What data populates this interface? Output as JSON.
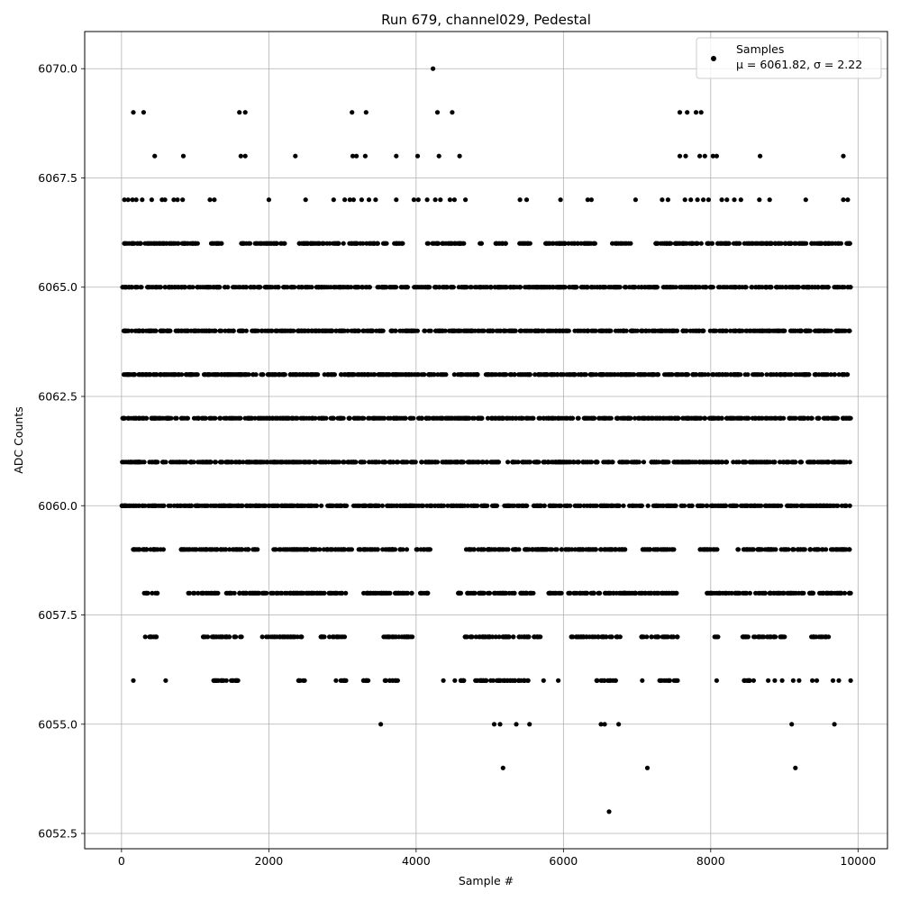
{
  "chart_data": {
    "type": "scatter",
    "title": "Run 679, channel029, Pedestal",
    "xlabel": "Sample #",
    "ylabel": "ADC Counts",
    "xlim": [
      -500,
      10400
    ],
    "ylim": [
      6052.15,
      6070.85
    ],
    "xticks": [
      0,
      2000,
      4000,
      6000,
      8000,
      10000
    ],
    "xtick_labels": [
      "0",
      "2000",
      "4000",
      "6000",
      "8000",
      "10000"
    ],
    "yticks": [
      6052.5,
      6055.0,
      6057.5,
      6060.0,
      6062.5,
      6065.0,
      6067.5,
      6070.0
    ],
    "ytick_labels": [
      "6052.5",
      "6055.0",
      "6057.5",
      "6060.0",
      "6062.5",
      "6065.0",
      "6067.5",
      "6070.0"
    ],
    "grid": true,
    "legend_position": "top-right",
    "series": [
      {
        "name": "Samples",
        "stats_label": "μ = 6061.82, σ = 2.22",
        "color": "#000000",
        "levels": [
          {
            "y": 6066,
            "x_ranges": [
              [
                0,
                1050
              ],
              [
                1200,
                1400
              ],
              [
                1620,
                2250
              ],
              [
                2380,
                3600
              ],
              [
                3700,
                3850
              ],
              [
                4150,
                4650
              ],
              [
                4850,
                4900
              ],
              [
                5080,
                5250
              ],
              [
                5400,
                5550
              ],
              [
                5750,
                6450
              ],
              [
                6650,
                6950
              ],
              [
                7250,
                9900
              ]
            ]
          },
          {
            "y": 6065,
            "x_ranges": [
              [
                0,
                9900
              ]
            ]
          },
          {
            "y": 6064,
            "x_ranges": [
              [
                0,
                9900
              ]
            ]
          },
          {
            "y": 6063,
            "x_ranges": [
              [
                0,
                9900
              ]
            ]
          },
          {
            "y": 6062,
            "x_ranges": [
              [
                0,
                9900
              ]
            ]
          },
          {
            "y": 6061,
            "x_ranges": [
              [
                0,
                9900
              ]
            ]
          },
          {
            "y": 6060,
            "x_ranges": [
              [
                0,
                9900
              ]
            ]
          },
          {
            "y": 6059,
            "x_ranges": [
              [
                150,
                600
              ],
              [
                800,
                1850
              ],
              [
                2050,
                3150
              ],
              [
                3200,
                3900
              ],
              [
                4000,
                4200
              ],
              [
                4650,
                6850
              ],
              [
                7050,
                7500
              ],
              [
                7850,
                8100
              ],
              [
                8350,
                9900
              ]
            ]
          },
          {
            "y": 6058,
            "x_ranges": [
              [
                300,
                500
              ],
              [
                900,
                2400
              ],
              [
                2400,
                3050
              ],
              [
                3250,
                3950
              ],
              [
                4050,
                4200
              ],
              [
                4550,
                5650
              ],
              [
                5800,
                7550
              ],
              [
                7950,
                9900
              ]
            ]
          },
          {
            "y": 6057,
            "x_ranges": [
              [
                320,
                480
              ],
              [
                1100,
                1650
              ],
              [
                1900,
                2450
              ],
              [
                2700,
                3050
              ],
              [
                3550,
                3950
              ],
              [
                4650,
                5700
              ],
              [
                6100,
                6800
              ],
              [
                7050,
                7550
              ],
              [
                8050,
                8150
              ],
              [
                8400,
                9050
              ],
              [
                9350,
                9600
              ]
            ]
          },
          {
            "y": 6056,
            "x_ranges": [
              [
                1250,
                1600
              ],
              [
                2400,
                2500
              ],
              [
                2900,
                3050
              ],
              [
                3250,
                3350
              ],
              [
                3550,
                3750
              ],
              [
                4500,
                4650
              ],
              [
                4800,
                5550
              ],
              [
                6450,
                6750
              ],
              [
                7300,
                7550
              ],
              [
                8450,
                8600
              ]
            ]
          }
        ],
        "points": [
          {
            "x": 4230,
            "y": 6070
          },
          {
            "x": 160,
            "y": 6069
          },
          {
            "x": 300,
            "y": 6069
          },
          {
            "x": 1600,
            "y": 6069
          },
          {
            "x": 1680,
            "y": 6069
          },
          {
            "x": 3130,
            "y": 6069
          },
          {
            "x": 3320,
            "y": 6069
          },
          {
            "x": 4290,
            "y": 6069
          },
          {
            "x": 4490,
            "y": 6069
          },
          {
            "x": 7580,
            "y": 6069
          },
          {
            "x": 7680,
            "y": 6069
          },
          {
            "x": 7800,
            "y": 6069
          },
          {
            "x": 7870,
            "y": 6069
          },
          {
            "x": 450,
            "y": 6068
          },
          {
            "x": 840,
            "y": 6068
          },
          {
            "x": 1620,
            "y": 6068
          },
          {
            "x": 1680,
            "y": 6068
          },
          {
            "x": 2360,
            "y": 6068
          },
          {
            "x": 3140,
            "y": 6068
          },
          {
            "x": 3190,
            "y": 6068
          },
          {
            "x": 3310,
            "y": 6068
          },
          {
            "x": 3730,
            "y": 6068
          },
          {
            "x": 4020,
            "y": 6068
          },
          {
            "x": 4310,
            "y": 6068
          },
          {
            "x": 4590,
            "y": 6068
          },
          {
            "x": 7580,
            "y": 6068
          },
          {
            "x": 7660,
            "y": 6068
          },
          {
            "x": 7850,
            "y": 6068
          },
          {
            "x": 7920,
            "y": 6068
          },
          {
            "x": 8030,
            "y": 6068
          },
          {
            "x": 8080,
            "y": 6068
          },
          {
            "x": 8670,
            "y": 6068
          },
          {
            "x": 9800,
            "y": 6068
          },
          {
            "x": 40,
            "y": 6067
          },
          {
            "x": 90,
            "y": 6067
          },
          {
            "x": 150,
            "y": 6067
          },
          {
            "x": 200,
            "y": 6067
          },
          {
            "x": 280,
            "y": 6067
          },
          {
            "x": 410,
            "y": 6067
          },
          {
            "x": 550,
            "y": 6067
          },
          {
            "x": 590,
            "y": 6067
          },
          {
            "x": 710,
            "y": 6067
          },
          {
            "x": 760,
            "y": 6067
          },
          {
            "x": 830,
            "y": 6067
          },
          {
            "x": 1200,
            "y": 6067
          },
          {
            "x": 1260,
            "y": 6067
          },
          {
            "x": 2000,
            "y": 6067
          },
          {
            "x": 2500,
            "y": 6067
          },
          {
            "x": 2880,
            "y": 6067
          },
          {
            "x": 3030,
            "y": 6067
          },
          {
            "x": 3100,
            "y": 6067
          },
          {
            "x": 3150,
            "y": 6067
          },
          {
            "x": 3260,
            "y": 6067
          },
          {
            "x": 3360,
            "y": 6067
          },
          {
            "x": 3450,
            "y": 6067
          },
          {
            "x": 3730,
            "y": 6067
          },
          {
            "x": 3970,
            "y": 6067
          },
          {
            "x": 4030,
            "y": 6067
          },
          {
            "x": 4150,
            "y": 6067
          },
          {
            "x": 4260,
            "y": 6067
          },
          {
            "x": 4330,
            "y": 6067
          },
          {
            "x": 4460,
            "y": 6067
          },
          {
            "x": 4520,
            "y": 6067
          },
          {
            "x": 4670,
            "y": 6067
          },
          {
            "x": 5410,
            "y": 6067
          },
          {
            "x": 5500,
            "y": 6067
          },
          {
            "x": 5960,
            "y": 6067
          },
          {
            "x": 6330,
            "y": 6067
          },
          {
            "x": 6380,
            "y": 6067
          },
          {
            "x": 6980,
            "y": 6067
          },
          {
            "x": 7340,
            "y": 6067
          },
          {
            "x": 7420,
            "y": 6067
          },
          {
            "x": 7650,
            "y": 6067
          },
          {
            "x": 7730,
            "y": 6067
          },
          {
            "x": 7820,
            "y": 6067
          },
          {
            "x": 7900,
            "y": 6067
          },
          {
            "x": 7970,
            "y": 6067
          },
          {
            "x": 8150,
            "y": 6067
          },
          {
            "x": 8220,
            "y": 6067
          },
          {
            "x": 8320,
            "y": 6067
          },
          {
            "x": 8410,
            "y": 6067
          },
          {
            "x": 8660,
            "y": 6067
          },
          {
            "x": 8800,
            "y": 6067
          },
          {
            "x": 9290,
            "y": 6067
          },
          {
            "x": 9800,
            "y": 6067
          },
          {
            "x": 9860,
            "y": 6067
          },
          {
            "x": 160,
            "y": 6056
          },
          {
            "x": 600,
            "y": 6056
          },
          {
            "x": 3330,
            "y": 6056
          },
          {
            "x": 4370,
            "y": 6056
          },
          {
            "x": 5730,
            "y": 6056
          },
          {
            "x": 5930,
            "y": 6056
          },
          {
            "x": 7070,
            "y": 6056
          },
          {
            "x": 8080,
            "y": 6056
          },
          {
            "x": 8780,
            "y": 6056
          },
          {
            "x": 8870,
            "y": 6056
          },
          {
            "x": 8970,
            "y": 6056
          },
          {
            "x": 9120,
            "y": 6056
          },
          {
            "x": 9200,
            "y": 6056
          },
          {
            "x": 9380,
            "y": 6056
          },
          {
            "x": 9440,
            "y": 6056
          },
          {
            "x": 9660,
            "y": 6056
          },
          {
            "x": 9740,
            "y": 6056
          },
          {
            "x": 9900,
            "y": 6056
          },
          {
            "x": 3520,
            "y": 6055
          },
          {
            "x": 5060,
            "y": 6055
          },
          {
            "x": 5140,
            "y": 6055
          },
          {
            "x": 5360,
            "y": 6055
          },
          {
            "x": 5540,
            "y": 6055
          },
          {
            "x": 6510,
            "y": 6055
          },
          {
            "x": 6560,
            "y": 6055
          },
          {
            "x": 6750,
            "y": 6055
          },
          {
            "x": 9100,
            "y": 6055
          },
          {
            "x": 9680,
            "y": 6055
          },
          {
            "x": 5180,
            "y": 6054
          },
          {
            "x": 7140,
            "y": 6054
          },
          {
            "x": 9150,
            "y": 6054
          },
          {
            "x": 6620,
            "y": 6053
          }
        ]
      }
    ]
  }
}
